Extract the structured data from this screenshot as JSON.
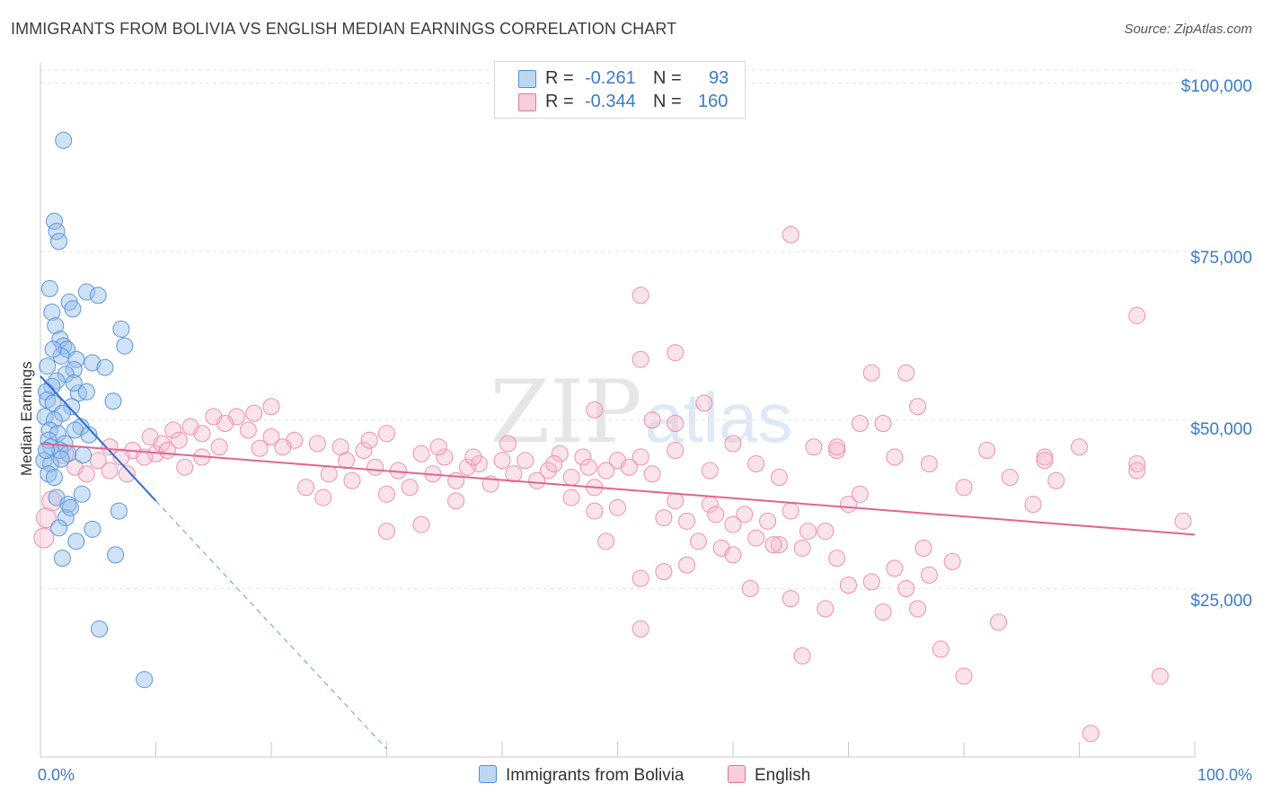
{
  "title": "IMMIGRANTS FROM BOLIVIA VS ENGLISH MEDIAN EARNINGS CORRELATION CHART",
  "source": "Source: ZipAtlas.com",
  "watermark": {
    "zip": "ZIP",
    "atlas": "atlas"
  },
  "colors": {
    "blue": "#4f8fd6",
    "blue_fill": "#a9c9ef",
    "pink": "#e8709a",
    "pink_fill": "#f6b9cd",
    "tick": "#3a7bc8"
  },
  "legend": {
    "series1": {
      "r_label": "R =",
      "r_value": "-0.261",
      "n_label": "N =",
      "n_value": "93"
    },
    "series2": {
      "r_label": "R =",
      "r_value": "-0.344",
      "n_label": "N =",
      "n_value": "160"
    }
  },
  "chart_data": {
    "type": "scatter",
    "title": "IMMIGRANTS FROM BOLIVIA VS ENGLISH MEDIAN EARNINGS CORRELATION CHART",
    "xlabel": "",
    "ylabel": "Median Earnings",
    "xlim": [
      0,
      100
    ],
    "ylim": [
      0,
      103000
    ],
    "x_tick_labels": [
      "0.0%",
      "100.0%"
    ],
    "y_ticks": [
      25000,
      50000,
      75000,
      100000
    ],
    "y_tick_labels": [
      "$25,000",
      "$50,000",
      "$75,000",
      "$100,000"
    ],
    "grid": true,
    "legend_position": "top-center",
    "series": [
      {
        "name": "Immigrants from Bolivia",
        "r": -0.261,
        "n": 93,
        "trend": {
          "x0": 0,
          "y0": 56500,
          "x1": 10,
          "y1": 38000,
          "dash_to_x": 30,
          "dash_to_y": 1200
        },
        "points": [
          [
            2,
            91500
          ],
          [
            1.2,
            79500
          ],
          [
            1.4,
            78000
          ],
          [
            1.6,
            76500
          ],
          [
            0.8,
            69500
          ],
          [
            4,
            69000
          ],
          [
            5,
            68500
          ],
          [
            2.5,
            67500
          ],
          [
            2.8,
            66500
          ],
          [
            1.0,
            66000
          ],
          [
            1.3,
            64000
          ],
          [
            7,
            63500
          ],
          [
            1.7,
            62000
          ],
          [
            2.0,
            61000
          ],
          [
            2.3,
            60500
          ],
          [
            7.3,
            61000
          ],
          [
            1.8,
            59500
          ],
          [
            3.1,
            59000
          ],
          [
            4.5,
            58500
          ],
          [
            5.6,
            57800
          ],
          [
            0.6,
            58000
          ],
          [
            2.9,
            57500
          ],
          [
            2.2,
            56800
          ],
          [
            1.4,
            55800
          ],
          [
            1.0,
            55000
          ],
          [
            0.5,
            54200
          ],
          [
            3.3,
            54000
          ],
          [
            4.0,
            54200
          ],
          [
            0.6,
            53000
          ],
          [
            1.1,
            52500
          ],
          [
            6.3,
            52800
          ],
          [
            2.7,
            52000
          ],
          [
            1.9,
            51000
          ],
          [
            0.4,
            50500
          ],
          [
            1.2,
            50000
          ],
          [
            3.5,
            49000
          ],
          [
            3.0,
            48500
          ],
          [
            0.8,
            48500
          ],
          [
            1.5,
            48000
          ],
          [
            4.2,
            47800
          ],
          [
            0.7,
            47000
          ],
          [
            2.1,
            46500
          ],
          [
            0.9,
            46000
          ],
          [
            1.7,
            45500
          ],
          [
            2.4,
            45000
          ],
          [
            3.7,
            44800
          ],
          [
            0.3,
            44000
          ],
          [
            0.9,
            43500
          ],
          [
            0.7,
            42000
          ],
          [
            1.8,
            44200
          ],
          [
            3.6,
            39000
          ],
          [
            1.4,
            38500
          ],
          [
            2.4,
            37500
          ],
          [
            6.8,
            36500
          ],
          [
            2.2,
            35500
          ],
          [
            1.6,
            34000
          ],
          [
            4.5,
            33800
          ],
          [
            3.1,
            32000
          ],
          [
            1.9,
            29500
          ],
          [
            6.5,
            30000
          ],
          [
            5.1,
            19000
          ],
          [
            9.0,
            11500
          ],
          [
            2.6,
            37000
          ],
          [
            1.2,
            41500
          ],
          [
            0.5,
            45500
          ],
          [
            2.9,
            55500
          ],
          [
            1.1,
            60500
          ]
        ]
      },
      {
        "name": "English",
        "r": -0.344,
        "n": 160,
        "trend": {
          "x0": 0,
          "y0": 46500,
          "x1": 100,
          "y1": 33000
        },
        "points": [
          [
            65,
            77500
          ],
          [
            52,
            68500
          ],
          [
            95,
            65500
          ],
          [
            55,
            60000
          ],
          [
            52,
            59000
          ],
          [
            72,
            57000
          ],
          [
            75,
            57000
          ],
          [
            76,
            52000
          ],
          [
            48,
            51500
          ],
          [
            57.5,
            52500
          ],
          [
            53,
            50000
          ],
          [
            55,
            49500
          ],
          [
            71,
            49500
          ],
          [
            73,
            49500
          ],
          [
            30,
            48000
          ],
          [
            15,
            50500
          ],
          [
            17,
            50500
          ],
          [
            13,
            49000
          ],
          [
            14,
            48000
          ],
          [
            16,
            49500
          ],
          [
            11.5,
            48500
          ],
          [
            12,
            47000
          ],
          [
            18,
            48500
          ],
          [
            20,
            47500
          ],
          [
            22,
            47000
          ],
          [
            24,
            46500
          ],
          [
            26,
            46000
          ],
          [
            28,
            45500
          ],
          [
            19,
            45800
          ],
          [
            21,
            46000
          ],
          [
            10,
            45000
          ],
          [
            8,
            45500
          ],
          [
            7,
            44500
          ],
          [
            6,
            46000
          ],
          [
            5,
            44000
          ],
          [
            9,
            44500
          ],
          [
            10.5,
            46500
          ],
          [
            11,
            45500
          ],
          [
            3,
            43000
          ],
          [
            4,
            42000
          ],
          [
            6,
            42500
          ],
          [
            2,
            45000
          ],
          [
            1,
            38000
          ],
          [
            0.5,
            35500
          ],
          [
            0.3,
            32500
          ],
          [
            33,
            45000
          ],
          [
            35,
            44500
          ],
          [
            38,
            43500
          ],
          [
            40,
            44000
          ],
          [
            42,
            44000
          ],
          [
            45,
            45000
          ],
          [
            47,
            44500
          ],
          [
            50,
            44000
          ],
          [
            52,
            44500
          ],
          [
            55,
            45500
          ],
          [
            58,
            42500
          ],
          [
            60,
            46500
          ],
          [
            62,
            43500
          ],
          [
            64,
            41500
          ],
          [
            67,
            46000
          ],
          [
            69,
            45500
          ],
          [
            74,
            44500
          ],
          [
            77,
            43500
          ],
          [
            80,
            40000
          ],
          [
            82,
            45500
          ],
          [
            84,
            41500
          ],
          [
            87,
            44500
          ],
          [
            90,
            46000
          ],
          [
            95,
            43500
          ],
          [
            25,
            42000
          ],
          [
            27,
            41000
          ],
          [
            29,
            43000
          ],
          [
            31,
            42500
          ],
          [
            34,
            42000
          ],
          [
            36,
            41000
          ],
          [
            37,
            43000
          ],
          [
            39,
            40500
          ],
          [
            41,
            42000
          ],
          [
            43,
            41000
          ],
          [
            44,
            42500
          ],
          [
            46,
            41500
          ],
          [
            48,
            40000
          ],
          [
            49,
            42500
          ],
          [
            51,
            43000
          ],
          [
            53,
            42000
          ],
          [
            23,
            40000
          ],
          [
            24.5,
            38500
          ],
          [
            30,
            39000
          ],
          [
            36,
            38000
          ],
          [
            46,
            38500
          ],
          [
            50,
            37000
          ],
          [
            55,
            38000
          ],
          [
            58,
            37500
          ],
          [
            61,
            36000
          ],
          [
            48,
            36500
          ],
          [
            54,
            35500
          ],
          [
            56,
            35000
          ],
          [
            60,
            34500
          ],
          [
            63,
            35000
          ],
          [
            65,
            36500
          ],
          [
            68,
            33500
          ],
          [
            70,
            37500
          ],
          [
            33,
            34500
          ],
          [
            30,
            33500
          ],
          [
            57,
            32000
          ],
          [
            59,
            31000
          ],
          [
            62,
            32500
          ],
          [
            64,
            31500
          ],
          [
            66,
            31000
          ],
          [
            69,
            29500
          ],
          [
            72,
            26000
          ],
          [
            75,
            25000
          ],
          [
            77,
            27000
          ],
          [
            49,
            32000
          ],
          [
            52,
            26500
          ],
          [
            54,
            27500
          ],
          [
            56,
            28500
          ],
          [
            60,
            30000
          ],
          [
            61.5,
            25000
          ],
          [
            65,
            23500
          ],
          [
            68,
            22000
          ],
          [
            70,
            25500
          ],
          [
            73,
            21500
          ],
          [
            76,
            22000
          ],
          [
            78,
            16000
          ],
          [
            80,
            12000
          ],
          [
            83,
            20000
          ],
          [
            86,
            37500
          ],
          [
            87,
            44000
          ],
          [
            88,
            41000
          ],
          [
            91,
            3500
          ],
          [
            97,
            12000
          ],
          [
            99,
            35000
          ],
          [
            95,
            42500
          ],
          [
            66,
            15000
          ],
          [
            52,
            19000
          ],
          [
            58.5,
            36000
          ],
          [
            63.5,
            31500
          ],
          [
            66.5,
            33500
          ],
          [
            69,
            46000
          ],
          [
            71,
            39000
          ],
          [
            74,
            28000
          ],
          [
            76.5,
            31000
          ],
          [
            79,
            29000
          ],
          [
            18.5,
            51000
          ],
          [
            20,
            52000
          ],
          [
            14,
            44500
          ],
          [
            12.5,
            43000
          ],
          [
            9.5,
            47500
          ],
          [
            7.5,
            42000
          ],
          [
            15.5,
            46000
          ],
          [
            26.5,
            44000
          ],
          [
            28.5,
            47000
          ],
          [
            32,
            40000
          ],
          [
            34.5,
            46000
          ],
          [
            37.5,
            44500
          ],
          [
            40.5,
            46500
          ],
          [
            44.5,
            43500
          ],
          [
            47.5,
            43000
          ]
        ]
      }
    ]
  },
  "bottom_legend": {
    "series1_label": "Immigrants from Bolivia",
    "series2_label": "English"
  }
}
